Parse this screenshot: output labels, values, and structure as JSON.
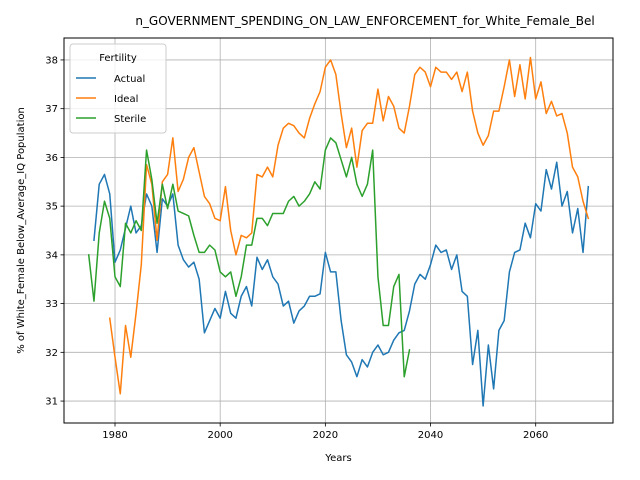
{
  "chart_data": {
    "type": "line",
    "title": "n_GOVERNMENT_SPENDING_ON_LAW_ENFORCEMENT_for_White_Female_Bel",
    "xlabel": "Years",
    "ylabel": "% of White_Female Below_Average_IQ Population",
    "xlim": [
      1970.3,
      2074.7
    ],
    "ylim": [
      30.55,
      38.45
    ],
    "xticks": [
      1980,
      2000,
      2020,
      2040,
      2060
    ],
    "yticks": [
      31,
      32,
      33,
      34,
      35,
      36,
      37,
      38
    ],
    "grid": true,
    "legend": {
      "title": "Fertility",
      "position": "upper-left"
    },
    "series": [
      {
        "name": "Actual",
        "color": "#1f77b4",
        "x": [
          1976,
          1977,
          1978,
          1979,
          1980,
          1981,
          1982,
          1983,
          1984,
          1985,
          1986,
          1987,
          1988,
          1989,
          1990,
          1991,
          1992,
          1993,
          1994,
          1995,
          1996,
          1997,
          1998,
          1999,
          2000,
          2001,
          2002,
          2003,
          2004,
          2005,
          2006,
          2007,
          2008,
          2009,
          2010,
          2011,
          2012,
          2013,
          2014,
          2015,
          2016,
          2017,
          2018,
          2019,
          2020,
          2021,
          2022,
          2023,
          2024,
          2025,
          2026,
          2027,
          2028,
          2029,
          2030,
          2031,
          2032,
          2033,
          2034,
          2035,
          2036,
          2037,
          2038,
          2039,
          2040,
          2041,
          2042,
          2043,
          2044,
          2045,
          2046,
          2047,
          2048,
          2049,
          2050,
          2051,
          2052,
          2053,
          2054,
          2055,
          2056,
          2057,
          2058,
          2059,
          2060,
          2061,
          2062,
          2063,
          2064,
          2065,
          2066,
          2067,
          2068,
          2069,
          2070
        ],
        "y": [
          34.3,
          35.45,
          35.65,
          35.25,
          33.85,
          34.1,
          34.55,
          35.0,
          34.45,
          34.6,
          35.25,
          35.0,
          34.05,
          35.15,
          35.0,
          35.25,
          34.2,
          33.9,
          33.75,
          33.85,
          33.5,
          32.4,
          32.65,
          32.9,
          32.7,
          33.25,
          32.8,
          32.7,
          33.15,
          33.35,
          32.95,
          33.95,
          33.7,
          33.9,
          33.55,
          33.4,
          32.95,
          33.05,
          32.6,
          32.85,
          32.95,
          33.15,
          33.15,
          33.2,
          34.05,
          33.65,
          33.65,
          32.65,
          31.95,
          31.8,
          31.5,
          31.85,
          31.7,
          32.0,
          32.15,
          31.95,
          32.0,
          32.25,
          32.4,
          32.45,
          32.85,
          33.4,
          33.6,
          33.5,
          33.8,
          34.2,
          34.05,
          34.1,
          33.7,
          34.0,
          33.25,
          33.15,
          31.75,
          32.45,
          30.9,
          32.15,
          31.25,
          32.45,
          32.65,
          33.65,
          34.05,
          34.1,
          34.65,
          34.35,
          35.05,
          34.9,
          35.75,
          35.35,
          35.9,
          35.0,
          35.3,
          34.45,
          34.95,
          34.05,
          35.4
        ]
      },
      {
        "name": "Ideal",
        "color": "#ff7f0e",
        "x": [
          1979,
          1980,
          1981,
          1982,
          1983,
          1984,
          1985,
          1986,
          1987,
          1988,
          1989,
          1990,
          1991,
          1992,
          1993,
          1994,
          1995,
          1996,
          1997,
          1998,
          1999,
          2000,
          2001,
          2002,
          2003,
          2004,
          2005,
          2006,
          2007,
          2008,
          2009,
          2010,
          2011,
          2012,
          2013,
          2014,
          2015,
          2016,
          2017,
          2018,
          2019,
          2020,
          2021,
          2022,
          2023,
          2024,
          2025,
          2026,
          2027,
          2028,
          2029,
          2030,
          2031,
          2032,
          2033,
          2034,
          2035,
          2036,
          2037,
          2038,
          2039,
          2040,
          2041,
          2042,
          2043,
          2044,
          2045,
          2046,
          2047,
          2048,
          2049,
          2050,
          2051,
          2052,
          2053,
          2054,
          2055,
          2056,
          2057,
          2058,
          2059,
          2060,
          2061,
          2062,
          2063,
          2064,
          2065,
          2066,
          2067,
          2068,
          2069,
          2070
        ],
        "y": [
          32.7,
          31.9,
          31.15,
          32.55,
          31.9,
          32.8,
          33.8,
          35.85,
          35.45,
          34.3,
          35.5,
          35.65,
          36.4,
          35.3,
          35.55,
          36.0,
          36.2,
          35.7,
          35.2,
          35.05,
          34.75,
          34.7,
          35.4,
          34.5,
          34.0,
          34.4,
          34.35,
          34.45,
          35.65,
          35.6,
          35.8,
          35.6,
          36.25,
          36.6,
          36.7,
          36.65,
          36.5,
          36.4,
          36.8,
          37.1,
          37.35,
          37.85,
          38.0,
          37.7,
          36.9,
          36.2,
          36.6,
          35.8,
          36.55,
          36.7,
          36.7,
          37.4,
          36.75,
          37.25,
          37.05,
          36.6,
          36.5,
          37.05,
          37.7,
          37.85,
          37.75,
          37.45,
          37.85,
          37.75,
          37.75,
          37.6,
          37.75,
          37.35,
          37.75,
          36.95,
          36.5,
          36.25,
          36.45,
          36.95,
          36.95,
          37.45,
          38.0,
          37.25,
          37.9,
          37.2,
          38.05,
          37.2,
          37.55,
          36.9,
          37.15,
          36.85,
          36.9,
          36.5,
          35.8,
          35.6,
          35.1,
          34.75
        ]
      },
      {
        "name": "Sterile",
        "color": "#2ca02c",
        "x": [
          1975,
          1976,
          1977,
          1978,
          1979,
          1980,
          1981,
          1982,
          1983,
          1984,
          1985,
          1986,
          1987,
          1988,
          1989,
          1990,
          1991,
          1992,
          1993,
          1994,
          1995,
          1996,
          1997,
          1998,
          1999,
          2000,
          2001,
          2002,
          2003,
          2004,
          2005,
          2006,
          2007,
          2008,
          2009,
          2010,
          2011,
          2012,
          2013,
          2014,
          2015,
          2016,
          2017,
          2018,
          2019,
          2020,
          2021,
          2022,
          2023,
          2024,
          2025,
          2026,
          2027,
          2028,
          2029,
          2030,
          2031,
          2032,
          2033,
          2034,
          2035,
          2036
        ],
        "y": [
          34.0,
          33.05,
          34.45,
          35.1,
          34.75,
          33.55,
          33.35,
          34.65,
          34.45,
          34.7,
          34.5,
          36.15,
          35.55,
          34.65,
          35.45,
          34.95,
          35.45,
          34.9,
          34.85,
          34.8,
          34.4,
          34.05,
          34.05,
          34.2,
          34.1,
          33.65,
          33.55,
          33.65,
          33.15,
          33.55,
          34.2,
          34.2,
          34.75,
          34.75,
          34.6,
          34.85,
          34.85,
          34.85,
          35.1,
          35.2,
          35.0,
          35.1,
          35.25,
          35.5,
          35.35,
          36.15,
          36.4,
          36.3,
          35.95,
          35.6,
          36.0,
          35.45,
          35.2,
          35.45,
          36.15,
          33.55,
          32.55,
          32.55,
          33.35,
          33.6,
          31.5,
          32.05
        ]
      }
    ]
  }
}
